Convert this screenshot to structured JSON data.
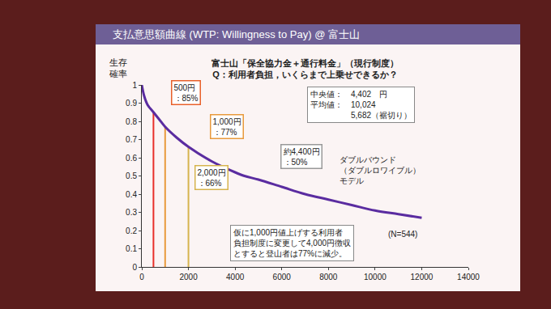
{
  "chart_data": {
    "type": "line",
    "title": "支払意思額曲線 (WTP: Willingness to Pay) @ 富士山",
    "ylabel": "生存\n確率",
    "x": [
      0,
      100,
      250,
      500,
      750,
      1000,
      1500,
      2000,
      3000,
      4000,
      4400,
      5000,
      6000,
      7000,
      8000,
      9000,
      10000,
      11000,
      12000
    ],
    "values": [
      1.0,
      0.94,
      0.89,
      0.85,
      0.81,
      0.77,
      0.71,
      0.66,
      0.58,
      0.52,
      0.5,
      0.48,
      0.44,
      0.4,
      0.37,
      0.34,
      0.31,
      0.29,
      0.27
    ],
    "color": "#5a2ca0",
    "xlim": [
      0,
      14000
    ],
    "ylim": [
      0,
      1
    ],
    "xticks": [
      0,
      2000,
      4000,
      6000,
      8000,
      10000,
      12000,
      14000
    ],
    "yticks": [
      0,
      0.1,
      0.2,
      0.3,
      0.4,
      0.5,
      0.6,
      0.7,
      0.8,
      0.9,
      1
    ],
    "grid": false,
    "drop_lines": [
      {
        "x": 500,
        "y": 0.85,
        "color": "#e8302a"
      },
      {
        "x": 1000,
        "y": 0.77,
        "color": "#e89a3c"
      },
      {
        "x": 2000,
        "y": 0.66,
        "color": "#d6b44e"
      }
    ],
    "point_labels": [
      {
        "x": 500,
        "y": 0.85,
        "text": "500円\n：85%",
        "color": "#e8602a"
      },
      {
        "x": 1000,
        "y": 0.77,
        "text": "1,000円\n：77%",
        "color": "#e89a3c"
      },
      {
        "x": 2000,
        "y": 0.66,
        "text": "2,000円\n：66%",
        "color": "#d6b44e"
      },
      {
        "x": 4400,
        "y": 0.5,
        "text": "約4,400円\n：50%",
        "color": "#999999"
      }
    ],
    "annotations": [
      {
        "text": "富士山「保全協力金＋通行料金」（現行制度）\nQ：利用者負担，いくらまで上乗せできるか？"
      },
      {
        "text": "中央値：　4,402　円\n平均値：　10,024\n　　　　　5,682（裾切り）"
      },
      {
        "text": "ダブルバウンド\n（ダブルロワイブル）\nモデル"
      },
      {
        "text": "仮に1,000円値上げする利用者\n負担制度に変更して4,000円徴収\nとすると登山者は77%に減少。"
      },
      {
        "text": "(N=544)"
      }
    ]
  }
}
